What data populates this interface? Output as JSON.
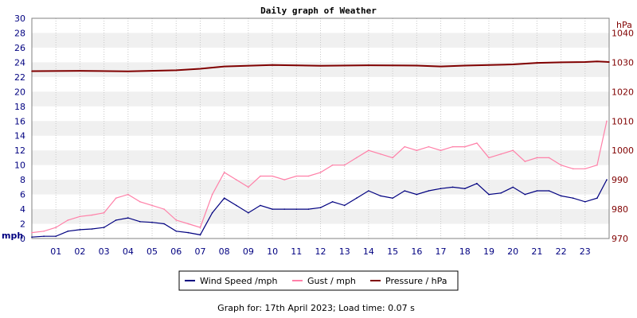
{
  "chart_data": {
    "type": "line",
    "title": "Daily graph of Weather",
    "footer": "Graph for: 17th April 2023; Load time: 0.07 s",
    "left_axis": {
      "unit": "mph",
      "ylim": [
        0,
        30
      ],
      "ticks": [
        "0",
        "2",
        "4",
        "6",
        "8",
        "10",
        "12",
        "14",
        "16",
        "18",
        "20",
        "22",
        "24",
        "26",
        "28",
        "30"
      ]
    },
    "right_axis": {
      "unit": "hPa",
      "ylim": [
        970,
        1045
      ],
      "ticks": [
        "970",
        "980",
        "990",
        "1000",
        "1010",
        "1020",
        "1030",
        "1040"
      ]
    },
    "x_axis": {
      "range": [
        0,
        24
      ],
      "ticks": [
        "01",
        "02",
        "03",
        "04",
        "05",
        "06",
        "07",
        "08",
        "09",
        "10",
        "11",
        "12",
        "13",
        "14",
        "15",
        "16",
        "17",
        "18",
        "19",
        "20",
        "21",
        "22",
        "23"
      ]
    },
    "legend": {
      "placement": "bottom",
      "entries": [
        "Wind Speed /mph",
        "Gust / mph",
        "Pressure / hPa"
      ]
    },
    "colors": {
      "wind": "#000080",
      "gust": "#ff80a8",
      "pressure": "#800000",
      "left_axis": "#000080",
      "right_axis": "#800000",
      "band": "#f0f0f0",
      "grid": "#c8c8c8"
    },
    "grid": true,
    "series": [
      {
        "name": "Wind Speed /mph",
        "axis": "left",
        "x": [
          0,
          0.5,
          1,
          1.5,
          2,
          2.5,
          3,
          3.5,
          4,
          4.5,
          5,
          5.5,
          6,
          6.5,
          7,
          7.5,
          8,
          8.5,
          9,
          9.5,
          10,
          10.5,
          11,
          11.5,
          12,
          12.5,
          13,
          13.5,
          14,
          14.5,
          15,
          15.5,
          16,
          16.5,
          17,
          17.5,
          18,
          18.5,
          19,
          19.5,
          20,
          20.5,
          21,
          21.5,
          22,
          22.5,
          23,
          23.5,
          23.9
        ],
        "values": [
          0.2,
          0.3,
          0.3,
          1,
          1.2,
          1.3,
          1.5,
          2.5,
          2.8,
          2.3,
          2.2,
          2.0,
          1.0,
          0.8,
          0.5,
          3.5,
          5.5,
          4.5,
          3.5,
          4.5,
          4.0,
          4.0,
          4.0,
          4.0,
          4.2,
          5.0,
          4.5,
          5.5,
          6.5,
          5.8,
          5.5,
          6.5,
          6.0,
          6.5,
          6.8,
          7.0,
          6.8,
          7.5,
          6.0,
          6.2,
          7.0,
          6.0,
          6.5,
          6.5,
          5.8,
          5.5,
          5.0,
          5.5,
          8.0
        ]
      },
      {
        "name": "Gust / mph",
        "axis": "left",
        "x": [
          0,
          0.5,
          1,
          1.5,
          2,
          2.5,
          3,
          3.5,
          4,
          4.5,
          5,
          5.5,
          6,
          6.5,
          7,
          7.5,
          8,
          8.5,
          9,
          9.5,
          10,
          10.5,
          11,
          11.5,
          12,
          12.5,
          13,
          13.5,
          14,
          14.5,
          15,
          15.5,
          16,
          16.5,
          17,
          17.5,
          18,
          18.5,
          19,
          19.5,
          20,
          20.5,
          21,
          21.5,
          22,
          22.5,
          23,
          23.5,
          23.9
        ],
        "values": [
          0.8,
          1.0,
          1.5,
          2.5,
          3.0,
          3.2,
          3.5,
          5.5,
          6.0,
          5.0,
          4.5,
          4.0,
          2.5,
          2.0,
          1.5,
          6.0,
          9.0,
          8.0,
          7.0,
          8.5,
          8.5,
          8.0,
          8.5,
          8.5,
          9.0,
          10.0,
          10.0,
          11.0,
          12.0,
          11.5,
          11.0,
          12.5,
          12.0,
          12.5,
          12.0,
          12.5,
          12.5,
          13.0,
          11.0,
          11.5,
          12.0,
          10.5,
          11.0,
          11.0,
          10.0,
          9.5,
          9.5,
          10.0,
          16.0
        ]
      },
      {
        "name": "Pressure / hPa",
        "axis": "right",
        "x": [
          0,
          2,
          4,
          6,
          7,
          8,
          10,
          12,
          14,
          16,
          17,
          18,
          20,
          21,
          22,
          23,
          23.5,
          24
        ],
        "values": [
          1027.0,
          1027.1,
          1026.9,
          1027.3,
          1027.8,
          1028.6,
          1029.1,
          1028.8,
          1029.0,
          1028.9,
          1028.6,
          1028.9,
          1029.3,
          1029.8,
          1030.0,
          1030.1,
          1030.3,
          1030.1
        ]
      }
    ]
  }
}
